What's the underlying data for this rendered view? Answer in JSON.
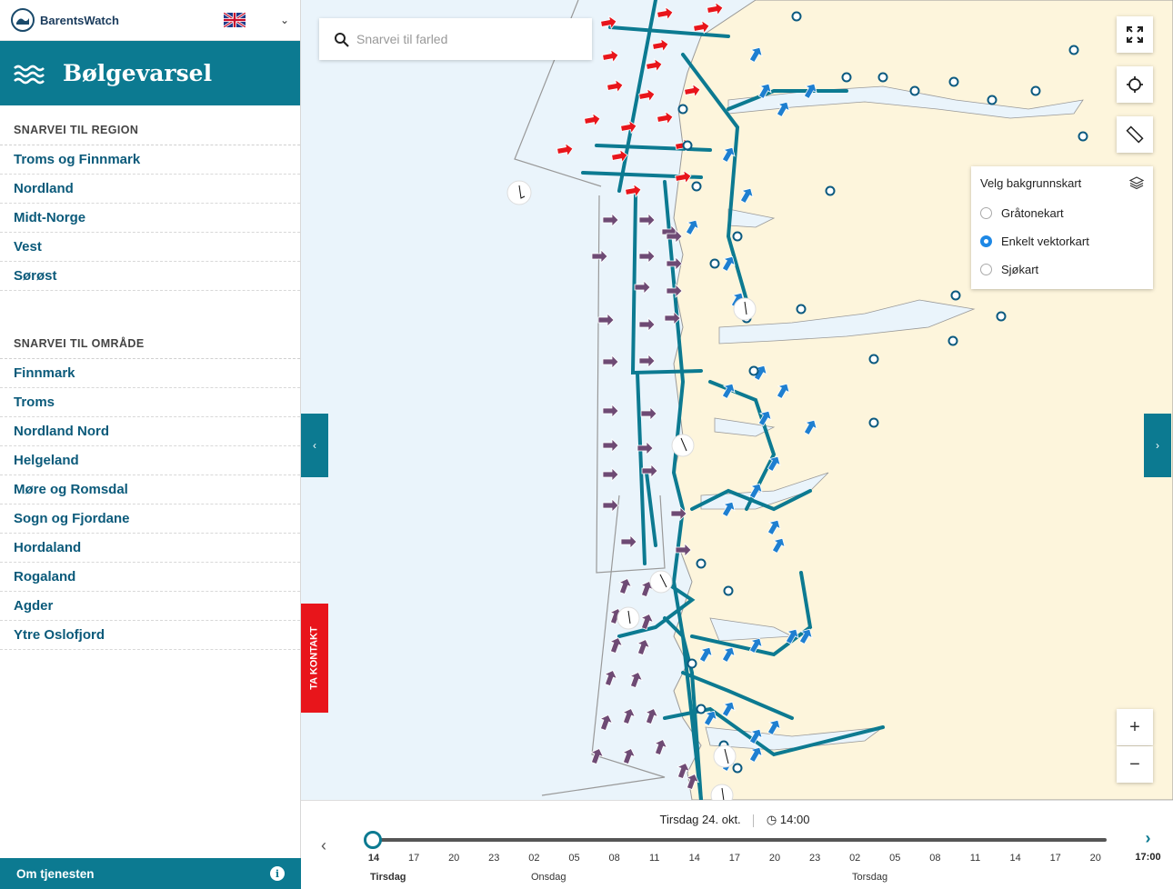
{
  "topbar": {
    "brand": "BarentsWatch"
  },
  "header": {
    "title": "Bølgevarsel"
  },
  "regions": {
    "title": "SNARVEI TIL REGION",
    "items": [
      "Troms og Finnmark",
      "Nordland",
      "Midt-Norge",
      "Vest",
      "Sørøst"
    ]
  },
  "areas": {
    "title": "SNARVEI TIL OMRÅDE",
    "items": [
      "Finnmark",
      "Troms",
      "Nordland Nord",
      "Helgeland",
      "Møre og Romsdal",
      "Sogn og Fjordane",
      "Hordaland",
      "Rogaland",
      "Agder",
      "Ytre Oslofjord"
    ]
  },
  "footer": {
    "label": "Om tjenesten"
  },
  "search": {
    "placeholder": "Snarvei til farled"
  },
  "layers": {
    "title": "Velg bakgrunnskart",
    "options": [
      "Gråtonekart",
      "Enkelt vektorkart",
      "Sjøkart"
    ],
    "selected": "Enkelt vektorkart"
  },
  "contact": {
    "label": "TA KONTAKT"
  },
  "timeline": {
    "date": "Tirsdag 24. okt.",
    "time": "14:00",
    "next_time": "17:00",
    "hours": [
      "14",
      "17",
      "20",
      "23",
      "02",
      "05",
      "08",
      "11",
      "14",
      "17",
      "20",
      "23",
      "02",
      "05",
      "08",
      "11",
      "14",
      "17",
      "20"
    ],
    "days": [
      "Tirsdag",
      "Onsdag",
      "Torsdag"
    ]
  },
  "colors": {
    "brand": "#0c7a91",
    "land": "#fdf5dc",
    "sea": "#eaf4fb",
    "route": "#0c7a91",
    "red_arrow": "#e8151b",
    "purple_arrow": "#6e4a74",
    "blue_arrow": "#1e7fd0"
  }
}
